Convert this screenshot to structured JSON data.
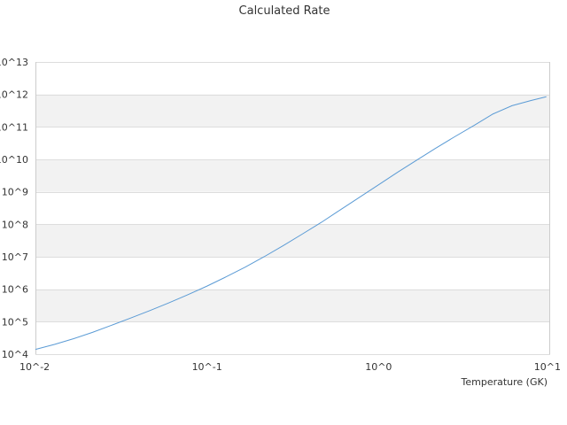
{
  "chart_data": {
    "type": "line",
    "title": "Calculated Rate",
    "xlabel": "Temperature (GK)",
    "ylabel": "",
    "x_scale": "log",
    "y_scale": "log",
    "xlim": [
      0.01,
      10
    ],
    "ylim": [
      10000,
      10000000000000
    ],
    "x_ticks": [
      {
        "value": 0.01,
        "label": "10^-2"
      },
      {
        "value": 0.1,
        "label": "10^-1"
      },
      {
        "value": 1,
        "label": "10^0"
      },
      {
        "value": 10,
        "label": "10^1"
      }
    ],
    "y_ticks": [
      {
        "value": 10000,
        "label": "10^4"
      },
      {
        "value": 100000,
        "label": "10^5"
      },
      {
        "value": 1000000,
        "label": "10^6"
      },
      {
        "value": 10000000,
        "label": "10^7"
      },
      {
        "value": 100000000,
        "label": "10^8"
      },
      {
        "value": 1000000000,
        "label": "10^9"
      },
      {
        "value": 10000000000,
        "label": "10^10"
      },
      {
        "value": 100000000000,
        "label": "10^11"
      },
      {
        "value": 1000000000000,
        "label": "10^12"
      },
      {
        "value": 10000000000000,
        "label": "10^13"
      }
    ],
    "grid": true,
    "band_color": "#f2f2f2",
    "grid_color": "#dddddd",
    "series": [
      {
        "color": "#5b9bd5",
        "x": [
          0.01,
          0.0129,
          0.0167,
          0.0215,
          0.0278,
          0.0359,
          0.0464,
          0.0599,
          0.0774,
          0.1,
          0.129,
          0.167,
          0.215,
          0.278,
          0.359,
          0.464,
          0.599,
          0.774,
          1,
          1.29,
          1.67,
          2.15,
          2.78,
          3.59,
          4.64,
          5.99,
          7.74,
          9.5
        ],
        "y": [
          14000,
          20000,
          30000,
          47000,
          78000,
          130000,
          220000,
          380000,
          680000,
          1250000,
          2400000,
          4800000,
          10000000,
          22000000,
          50000000,
          115000000,
          280000000,
          680000000,
          1650000000,
          4000000000,
          9500000000,
          22000000000,
          50000000000,
          110000000000,
          250000000000,
          450000000000,
          650000000000,
          850000000000
        ]
      }
    ]
  }
}
